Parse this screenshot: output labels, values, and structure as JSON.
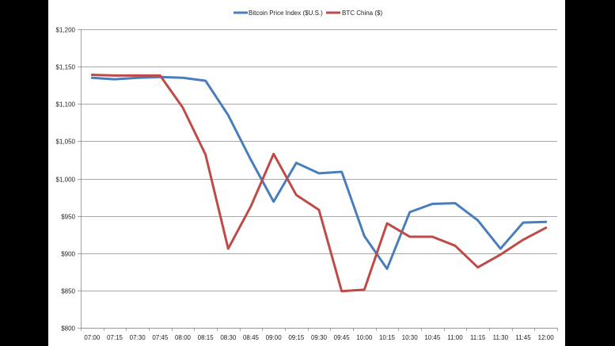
{
  "chart_data": {
    "type": "line",
    "title": "",
    "xlabel": "",
    "ylabel": "",
    "ylim": [
      800,
      1200
    ],
    "yticks": [
      800,
      850,
      900,
      950,
      1000,
      1050,
      1100,
      1150,
      1200
    ],
    "ytick_labels": [
      "$800",
      "$850",
      "$900",
      "$950",
      "$1,000",
      "$1,050",
      "$1,100",
      "$1,150",
      "$1,200"
    ],
    "categories": [
      "07:00",
      "07:15",
      "07:30",
      "07:45",
      "08:00",
      "08:15",
      "08:30",
      "08:45",
      "09:00",
      "09:15",
      "09:30",
      "09:45",
      "10:00",
      "10:15",
      "10:30",
      "10:45",
      "11:00",
      "11:15",
      "11:30",
      "11:45",
      "12:00"
    ],
    "grid": true,
    "legend_position": "top-center",
    "series": [
      {
        "name": "Bitcoin Price Index ($U.S.)",
        "color": "#4a7ebb",
        "values": [
          1135,
          1133,
          1135,
          1136,
          1135,
          1131,
          1085,
          1025,
          969,
          1021,
          1007,
          1009,
          923,
          879,
          955,
          966,
          967,
          944,
          906,
          941,
          942
        ]
      },
      {
        "name": "BTC China ($)",
        "color": "#be4b48",
        "values": [
          1139,
          1138,
          1138,
          1138,
          1095,
          1032,
          906,
          963,
          1033,
          978,
          958,
          849,
          851,
          940,
          922,
          922,
          910,
          881,
          898,
          918,
          934
        ]
      }
    ]
  }
}
